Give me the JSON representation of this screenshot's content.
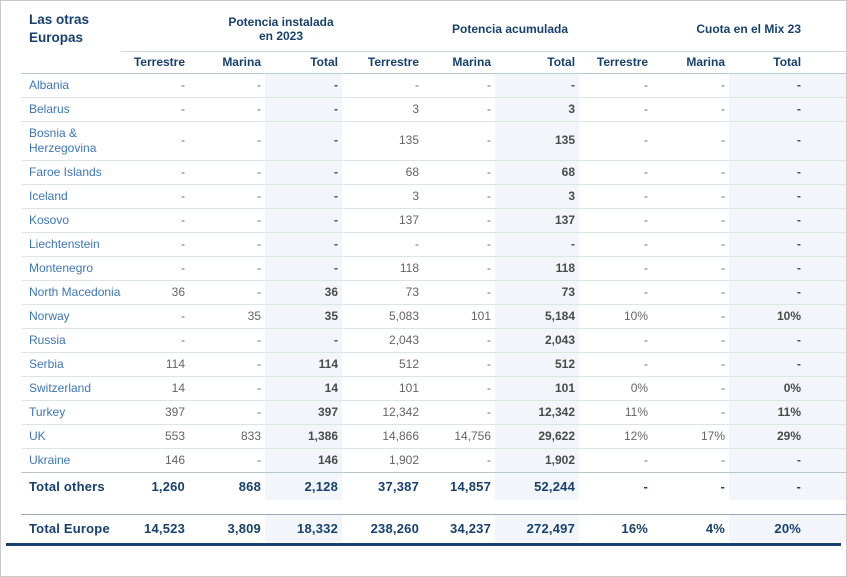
{
  "chart_data": {
    "type": "table",
    "title": "Las otras Europas",
    "column_groups": [
      "Potencia instalada en 2023",
      "Potencia acumulada",
      "Cuota en el Mix 23"
    ],
    "sub_headers": [
      "Terrestre",
      "Marina",
      "Total"
    ],
    "rows": [
      {
        "name": "Albania",
        "values": [
          "-",
          "-",
          "-",
          "-",
          "-",
          "-",
          "-",
          "-",
          "-"
        ]
      },
      {
        "name": "Belarus",
        "values": [
          "-",
          "-",
          "-",
          "3",
          "-",
          "3",
          "-",
          "-",
          "-"
        ]
      },
      {
        "name": "Bosnia & Herzegovina",
        "values": [
          "-",
          "-",
          "-",
          "135",
          "-",
          "135",
          "-",
          "-",
          "-"
        ]
      },
      {
        "name": "Faroe Islands",
        "values": [
          "-",
          "-",
          "-",
          "68",
          "-",
          "68",
          "-",
          "-",
          "-"
        ]
      },
      {
        "name": "Iceland",
        "values": [
          "-",
          "-",
          "-",
          "3",
          "-",
          "3",
          "-",
          "-",
          "-"
        ]
      },
      {
        "name": "Kosovo",
        "values": [
          "-",
          "-",
          "-",
          "137",
          "-",
          "137",
          "-",
          "-",
          "-"
        ]
      },
      {
        "name": "Liechtenstein",
        "values": [
          "-",
          "-",
          "-",
          "-",
          "-",
          "-",
          "-",
          "-",
          "-"
        ]
      },
      {
        "name": "Montenegro",
        "values": [
          "-",
          "-",
          "-",
          "118",
          "-",
          "118",
          "-",
          "-",
          "-"
        ]
      },
      {
        "name": "North Macedonia",
        "values": [
          "36",
          "-",
          "36",
          "73",
          "-",
          "73",
          "-",
          "-",
          "-"
        ]
      },
      {
        "name": "Norway",
        "values": [
          "-",
          "35",
          "35",
          "5,083",
          "101",
          "5,184",
          "10%",
          "-",
          "10%"
        ]
      },
      {
        "name": "Russia",
        "values": [
          "-",
          "-",
          "-",
          "2,043",
          "-",
          "2,043",
          "-",
          "-",
          "-"
        ]
      },
      {
        "name": "Serbia",
        "values": [
          "114",
          "-",
          "114",
          "512",
          "-",
          "512",
          "-",
          "-",
          "-"
        ]
      },
      {
        "name": "Switzerland",
        "values": [
          "14",
          "-",
          "14",
          "101",
          "-",
          "101",
          "0%",
          "-",
          "0%"
        ]
      },
      {
        "name": "Turkey",
        "values": [
          "397",
          "-",
          "397",
          "12,342",
          "-",
          "12,342",
          "11%",
          "-",
          "11%"
        ]
      },
      {
        "name": "UK",
        "values": [
          "553",
          "833",
          "1,386",
          "14,866",
          "14,756",
          "29,622",
          "12%",
          "17%",
          "29%"
        ]
      },
      {
        "name": "Ukraine",
        "values": [
          "146",
          "-",
          "146",
          "1,902",
          "-",
          "1,902",
          "-",
          "-",
          "-"
        ]
      }
    ],
    "total_others": {
      "name": "Total others",
      "values": [
        "1,260",
        "868",
        "2,128",
        "37,387",
        "14,857",
        "52,244",
        "-",
        "-",
        "-"
      ]
    },
    "total_europe": {
      "name": "Total Europe",
      "values": [
        "14,523",
        "3,809",
        "18,332",
        "238,260",
        "34,237",
        "272,497",
        "16%",
        "4%",
        "20%"
      ]
    },
    "layout_hints": {
      "units": "MW",
      "total_columns_highlighted": true,
      "grid": "horizontal-rules"
    }
  },
  "colors": {
    "navy": "#17406d",
    "country": "#3e76b4",
    "val": "#646464",
    "valbold": "#4a4a4a",
    "band": "#f2f6fb",
    "rowline": "#dbe5e1",
    "groupline": "#ccd9d6",
    "subline": "#b7cfcb",
    "totline": "#9fa9b2",
    "frame": "#c9c9c9"
  }
}
